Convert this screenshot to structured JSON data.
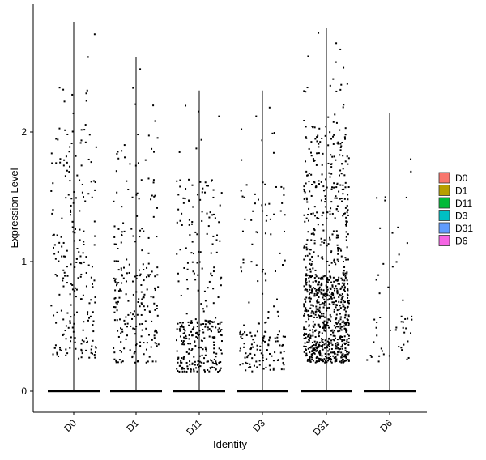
{
  "chart_data": {
    "type": "violin",
    "xlabel": "Identity",
    "ylabel": "Expression Level",
    "categories": [
      "D0",
      "D1",
      "D11",
      "D3",
      "D31",
      "D6"
    ],
    "ylim": [
      -0.17,
      2.9
    ],
    "yticks": [
      0,
      1,
      2
    ],
    "grid": false,
    "legend": {
      "placement": "right",
      "entries": [
        {
          "label": "D0",
          "color": "#F8766D"
        },
        {
          "label": "D1",
          "color": "#B79F00"
        },
        {
          "label": "D11",
          "color": "#00BA38"
        },
        {
          "label": "D3",
          "color": "#00BFC4"
        },
        {
          "label": "D31",
          "color": "#619CFF"
        },
        {
          "label": "D6",
          "color": "#F564E3"
        }
      ]
    },
    "violin_max": [
      2.85,
      2.58,
      2.32,
      2.32,
      2.8,
      2.15
    ],
    "violin_fill_opacity": 0,
    "dot_color": "#000000",
    "nonzero_cells": [
      {
        "category": "D0",
        "count": 230,
        "values_min": 0.25,
        "values_max": 2.85,
        "values_median": 0.85
      },
      {
        "category": "D1",
        "count": 240,
        "values_min": 0.22,
        "values_max": 2.58,
        "values_median": 0.7
      },
      {
        "category": "D11",
        "count": 320,
        "values_min": 0.15,
        "values_max": 2.32,
        "values_median": 0.4
      },
      {
        "category": "D3",
        "count": 170,
        "values_min": 0.15,
        "values_max": 2.32,
        "values_median": 0.35
      },
      {
        "category": "D31",
        "count": 950,
        "values_min": 0.22,
        "values_max": 2.8,
        "values_median": 0.65
      },
      {
        "category": "D6",
        "count": 55,
        "values_min": 0.22,
        "values_max": 2.15,
        "values_median": 0.45
      }
    ],
    "zero_value": 0
  }
}
